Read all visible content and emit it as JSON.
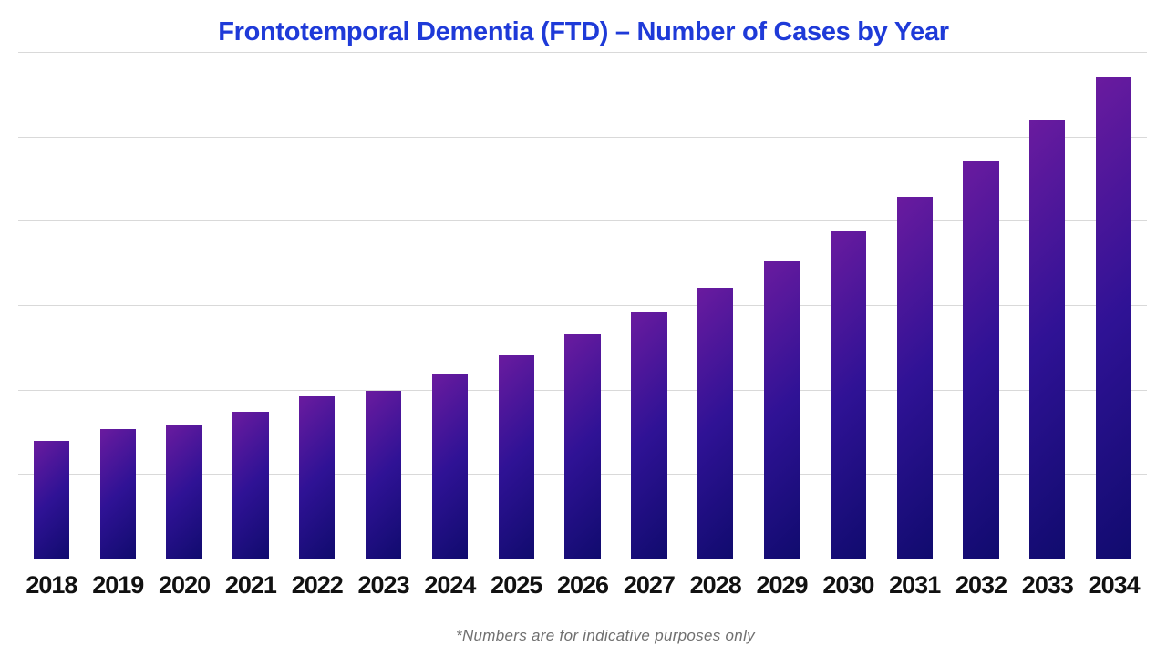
{
  "chart_data": {
    "type": "bar",
    "title": "Frontotemporal Dementia (FTD) – Number of Cases by Year",
    "footnote": "*Numbers are for indicative purposes only",
    "categories": [
      "2018",
      "2019",
      "2020",
      "2021",
      "2022",
      "2023",
      "2024",
      "2025",
      "2026",
      "2027",
      "2028",
      "2029",
      "2030",
      "2031",
      "2032",
      "2033",
      "2034"
    ],
    "values": [
      1.39,
      1.53,
      1.58,
      1.74,
      1.92,
      1.99,
      2.18,
      2.41,
      2.65,
      2.92,
      3.21,
      3.53,
      3.89,
      4.28,
      4.71,
      5.19,
      5.7
    ],
    "values_note": "y-axis has no tick labels; values estimated in gridline units (1 unit = one horizontal gridline interval)",
    "xlabel": "",
    "ylabel": "",
    "ylim": [
      0,
      6
    ],
    "y_gridline_step": 1,
    "grid": "horizontal gridlines on, unlabeled",
    "legend": "none"
  },
  "colors": {
    "title": "#1e3ad8",
    "bar_gradient_start": "#6a1b9f",
    "bar_gradient_mid": "#2f1295",
    "bar_gradient_end": "#100b6e",
    "gridline": "#d9d9d9",
    "axis_line": "#c9c9c9",
    "tick_label": "#111111",
    "footnote": "#6f6f6f"
  }
}
